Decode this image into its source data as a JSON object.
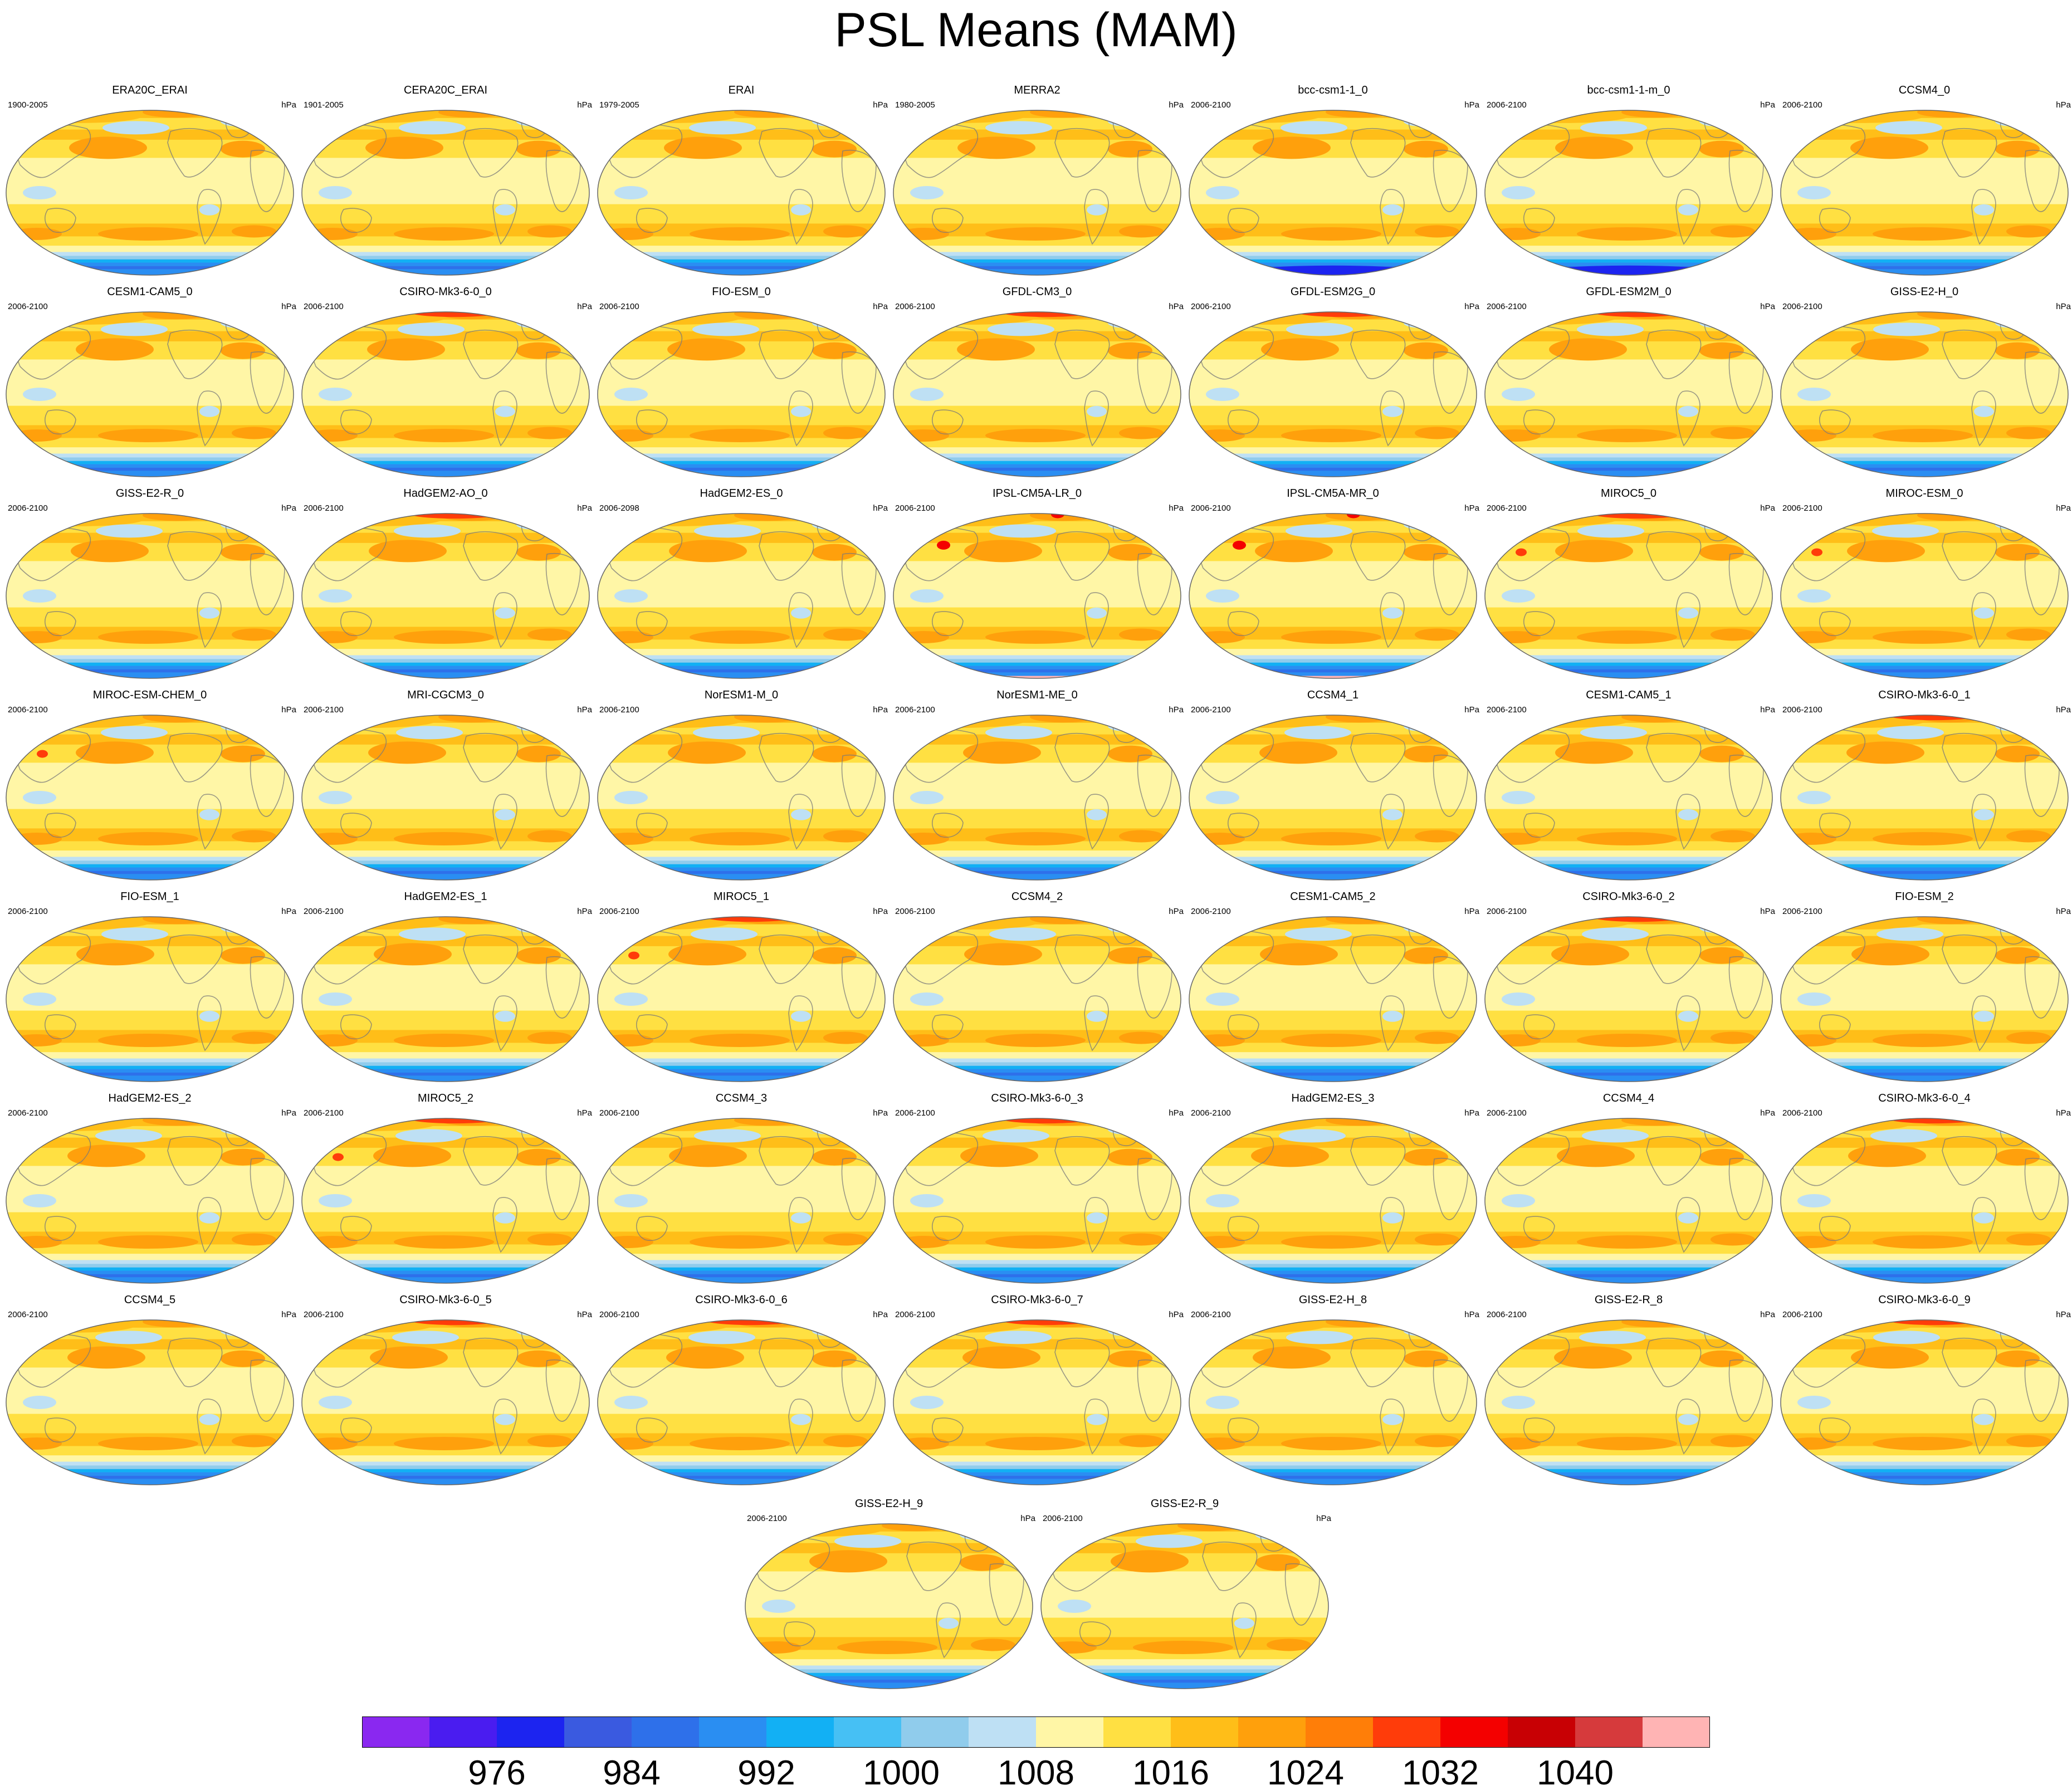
{
  "title": "PSL Means (MAM)",
  "units_label": "hPa",
  "colors": {
    "levels": [
      "#8a28f0",
      "#4a1cf0",
      "#1c24f0",
      "#3a5ae0",
      "#2e70ea",
      "#2a8ef2",
      "#12b0f4",
      "#46c0f4",
      "#90ccec",
      "#bee0f4",
      "#fff6a6",
      "#ffe042",
      "#ffbe18",
      "#ffa00c",
      "#ff7e08",
      "#ff3c0a",
      "#f40000",
      "#c80004",
      "#d63a3c",
      "#ffb4b4"
    ],
    "land": "#7a7a7a",
    "outline": "#666666"
  },
  "panels": [
    {
      "name": "ERA20C_ERAI",
      "years": "1900-2005"
    },
    {
      "name": "CERA20C_ERAI",
      "years": "1901-2005"
    },
    {
      "name": "ERAI",
      "years": "1979-2005"
    },
    {
      "name": "MERRA2",
      "years": "1980-2005"
    },
    {
      "name": "bcc-csm1-1_0",
      "years": "2006-2100"
    },
    {
      "name": "bcc-csm1-1-m_0",
      "years": "2006-2100"
    },
    {
      "name": "CCSM4_0",
      "years": "2006-2100"
    },
    {
      "name": "CESM1-CAM5_0",
      "years": "2006-2100"
    },
    {
      "name": "CSIRO-Mk3-6-0_0",
      "years": "2006-2100"
    },
    {
      "name": "FIO-ESM_0",
      "years": "2006-2100"
    },
    {
      "name": "GFDL-CM3_0",
      "years": "2006-2100"
    },
    {
      "name": "GFDL-ESM2G_0",
      "years": "2006-2100"
    },
    {
      "name": "GFDL-ESM2M_0",
      "years": "2006-2100"
    },
    {
      "name": "GISS-E2-H_0",
      "years": "2006-2100"
    },
    {
      "name": "GISS-E2-R_0",
      "years": "2006-2100"
    },
    {
      "name": "HadGEM2-AO_0",
      "years": "2006-2100"
    },
    {
      "name": "HadGEM2-ES_0",
      "years": "2006-2098"
    },
    {
      "name": "IPSL-CM5A-LR_0",
      "years": "2006-2100"
    },
    {
      "name": "IPSL-CM5A-MR_0",
      "years": "2006-2100"
    },
    {
      "name": "MIROC5_0",
      "years": "2006-2100"
    },
    {
      "name": "MIROC-ESM_0",
      "years": "2006-2100"
    },
    {
      "name": "MIROC-ESM-CHEM_0",
      "years": "2006-2100"
    },
    {
      "name": "MRI-CGCM3_0",
      "years": "2006-2100"
    },
    {
      "name": "NorESM1-M_0",
      "years": "2006-2100"
    },
    {
      "name": "NorESM1-ME_0",
      "years": "2006-2100"
    },
    {
      "name": "CCSM4_1",
      "years": "2006-2100"
    },
    {
      "name": "CESM1-CAM5_1",
      "years": "2006-2100"
    },
    {
      "name": "CSIRO-Mk3-6-0_1",
      "years": "2006-2100"
    },
    {
      "name": "FIO-ESM_1",
      "years": "2006-2100"
    },
    {
      "name": "HadGEM2-ES_1",
      "years": "2006-2100"
    },
    {
      "name": "MIROC5_1",
      "years": "2006-2100"
    },
    {
      "name": "CCSM4_2",
      "years": "2006-2100"
    },
    {
      "name": "CESM1-CAM5_2",
      "years": "2006-2100"
    },
    {
      "name": "CSIRO-Mk3-6-0_2",
      "years": "2006-2100"
    },
    {
      "name": "FIO-ESM_2",
      "years": "2006-2100"
    },
    {
      "name": "HadGEM2-ES_2",
      "years": "2006-2100"
    },
    {
      "name": "MIROC5_2",
      "years": "2006-2100"
    },
    {
      "name": "CCSM4_3",
      "years": "2006-2100"
    },
    {
      "name": "CSIRO-Mk3-6-0_3",
      "years": "2006-2100"
    },
    {
      "name": "HadGEM2-ES_3",
      "years": "2006-2100"
    },
    {
      "name": "CCSM4_4",
      "years": "2006-2100"
    },
    {
      "name": "CSIRO-Mk3-6-0_4",
      "years": "2006-2100"
    },
    {
      "name": "CCSM4_5",
      "years": "2006-2100"
    },
    {
      "name": "CSIRO-Mk3-6-0_5",
      "years": "2006-2100"
    },
    {
      "name": "CSIRO-Mk3-6-0_6",
      "years": "2006-2100"
    },
    {
      "name": "CSIRO-Mk3-6-0_7",
      "years": "2006-2100"
    },
    {
      "name": "GISS-E2-H_8",
      "years": "2006-2100"
    },
    {
      "name": "GISS-E2-R_8",
      "years": "2006-2100"
    },
    {
      "name": "CSIRO-Mk3-6-0_9",
      "years": "2006-2100"
    },
    {
      "name": "GISS-E2-H_9",
      "years": "2006-2100"
    },
    {
      "name": "GISS-E2-R_9",
      "years": "2006-2100"
    }
  ],
  "chart_data": {
    "type": "heatmap",
    "title": "PSL Means (MAM)",
    "variable": "PSL",
    "season": "MAM",
    "units": "hPa",
    "projection": "Robinson (global, Pacific-centred)",
    "contour_levels": [
      972,
      976,
      980,
      984,
      988,
      992,
      996,
      1000,
      1004,
      1008,
      1012,
      1016,
      1020,
      1024,
      1028,
      1032,
      1036,
      1040,
      1044
    ],
    "colorbar_tick_labels": [
      "976",
      "984",
      "992",
      "1000",
      "1008",
      "1016",
      "1024",
      "1032",
      "1040"
    ],
    "num_panels": 51,
    "typical_field_hPa": {
      "antarctic_circumpolar_trough": [
        976,
        992
      ],
      "southern_subtropical_high": [
        1016,
        1024
      ],
      "equatorial_trough": [
        1008,
        1012
      ],
      "north_pacific_subtropical_high": [
        1020,
        1024
      ],
      "arctic_high": [
        1020,
        1032
      ]
    }
  }
}
